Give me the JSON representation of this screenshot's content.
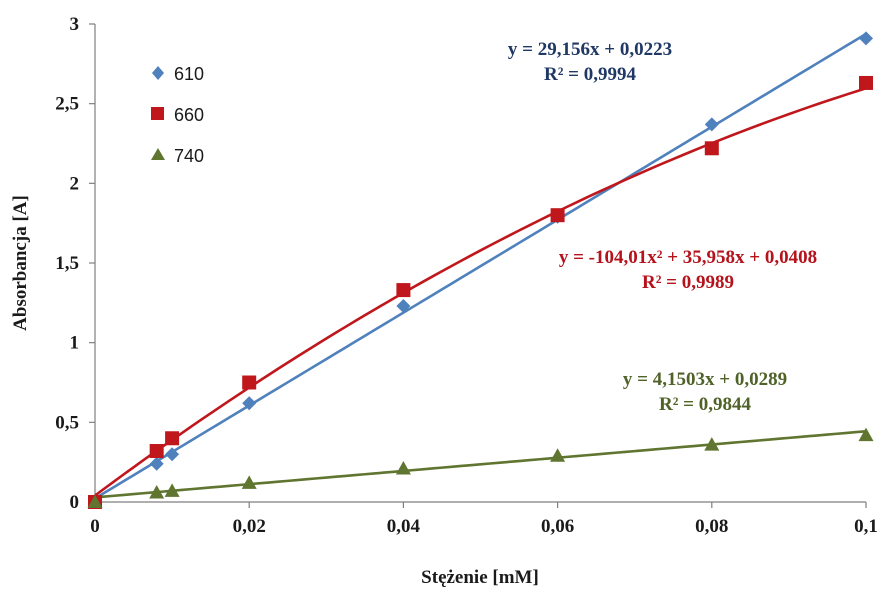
{
  "chart_data": {
    "type": "scatter",
    "title": "",
    "xlabel": "Stężenie [mM]",
    "ylabel": "Absorbancja [A]",
    "xlim": [
      0,
      0.1
    ],
    "ylim": [
      0,
      3
    ],
    "x_ticks": [
      0,
      0.02,
      0.04,
      0.06,
      0.08,
      0.1
    ],
    "y_ticks": [
      0,
      0.5,
      1,
      1.5,
      2,
      2.5,
      3
    ],
    "x_tick_labels": [
      "0",
      "0,02",
      "0,04",
      "0,06",
      "0,08",
      "0,1"
    ],
    "y_tick_labels": [
      "0",
      "0,5",
      "1",
      "1,5",
      "2",
      "2,5",
      "3"
    ],
    "grid": false,
    "legend_position": "top-left",
    "series": [
      {
        "name": "610",
        "marker": "diamond",
        "color": "#4f81bd",
        "x": [
          0,
          0.008,
          0.01,
          0.02,
          0.04,
          0.06,
          0.08,
          0.1
        ],
        "y": [
          0,
          0.24,
          0.3,
          0.62,
          1.23,
          1.79,
          2.37,
          2.91
        ],
        "trendline": {
          "kind": "linear",
          "coefficients": [
            29.156,
            0.0223
          ],
          "equation": "y = 29,156x + 0,0223",
          "r2": "R² = 0,9994",
          "label_color": "#1f3864"
        }
      },
      {
        "name": "660",
        "marker": "square",
        "color": "#c0171c",
        "x": [
          0,
          0.008,
          0.01,
          0.02,
          0.04,
          0.06,
          0.08,
          0.1
        ],
        "y": [
          0,
          0.32,
          0.4,
          0.75,
          1.33,
          1.8,
          2.22,
          2.63
        ],
        "trendline": {
          "kind": "poly2",
          "coefficients": [
            -104.01,
            35.958,
            0.0408
          ],
          "equation": "y = -104,01x² + 35,958x + 0,0408",
          "r2": "R² = 0,9989",
          "label_color": "#b5121b"
        }
      },
      {
        "name": "740",
        "marker": "triangle",
        "color": "#5f7530",
        "x": [
          0,
          0.008,
          0.01,
          0.02,
          0.04,
          0.06,
          0.08,
          0.1
        ],
        "y": [
          0,
          0.06,
          0.07,
          0.12,
          0.21,
          0.29,
          0.36,
          0.42
        ],
        "trendline": {
          "kind": "linear",
          "coefficients": [
            4.1503,
            0.0289
          ],
          "equation": "y = 4,1503x + 0,0289",
          "r2": "R² = 0,9844",
          "label_color": "#4f6228"
        }
      }
    ]
  }
}
